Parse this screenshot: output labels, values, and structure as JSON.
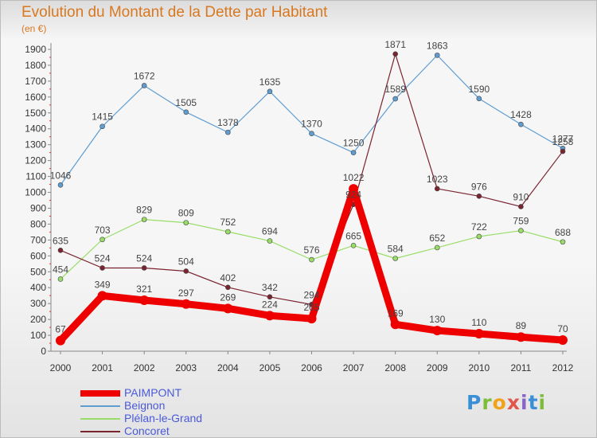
{
  "chart_data": {
    "type": "line",
    "title": "Evolution du Montant de la Dette par Habitant",
    "unit_label": "(en €)",
    "x": [
      "2000",
      "2001",
      "2002",
      "2003",
      "2004",
      "2005",
      "2006",
      "2007",
      "2008",
      "2009",
      "2010",
      "2011",
      "2012"
    ],
    "ylim": [
      0,
      1900
    ],
    "yticks": [
      0,
      100,
      200,
      300,
      400,
      500,
      600,
      700,
      800,
      900,
      1000,
      1100,
      1200,
      1300,
      1400,
      1500,
      1600,
      1700,
      1800,
      1900
    ],
    "grid": false,
    "legend_position": "bottom-left",
    "series": [
      {
        "name": "Beignon",
        "color": "#5f9dd1",
        "values": [
          1046,
          1415,
          1672,
          1505,
          1378,
          1635,
          1370,
          1250,
          1589,
          1863,
          1590,
          1428,
          1277
        ]
      },
      {
        "name": "Plélan-le-Grand",
        "color": "#99dd66",
        "values": [
          454,
          703,
          829,
          809,
          752,
          694,
          576,
          665,
          584,
          652,
          722,
          759,
          688
        ]
      },
      {
        "name": "Concoret",
        "color": "#7a2430",
        "values": [
          635,
          524,
          524,
          504,
          402,
          342,
          294,
          924,
          1871,
          1023,
          976,
          910,
          1258
        ]
      },
      {
        "name": "PAIMPONT",
        "color": "#ee0000",
        "emphasized": true,
        "values": [
          67,
          349,
          321,
          297,
          269,
          224,
          205,
          1022,
          169,
          130,
          110,
          89,
          70
        ]
      }
    ],
    "legend_order": [
      "PAIMPONT",
      "Beignon",
      "Plélan-le-Grand",
      "Concoret"
    ]
  },
  "logo": {
    "text": "Proxiti"
  }
}
